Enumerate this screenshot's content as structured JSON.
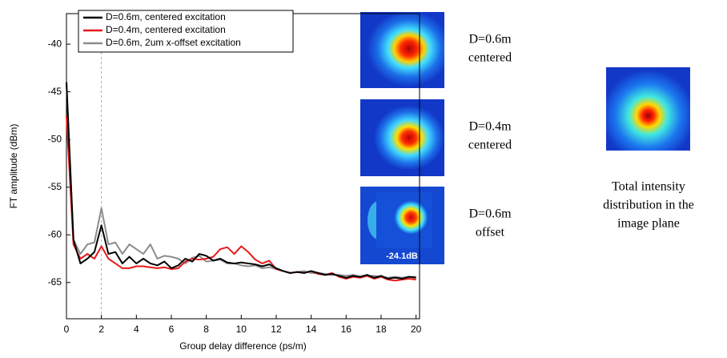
{
  "chart_data": {
    "type": "line",
    "x_label": "Group delay difference (ps/m)",
    "y_label": "FT amplitude (dBm)",
    "x": [
      0,
      0.4,
      0.8,
      1.2,
      1.6,
      2,
      2.4,
      2.8,
      3.2,
      3.6,
      4,
      4.4,
      4.8,
      5.2,
      5.6,
      6,
      6.4,
      6.8,
      7.2,
      7.6,
      8,
      8.4,
      8.8,
      9.2,
      9.6,
      10,
      10.4,
      10.8,
      11.2,
      11.6,
      12,
      12.4,
      12.8,
      13.2,
      13.6,
      14,
      14.4,
      14.8,
      15.2,
      15.6,
      16,
      16.4,
      16.8,
      17.2,
      17.6,
      18,
      18.4,
      18.8,
      19.2,
      19.6,
      20
    ],
    "series": [
      {
        "name": "D=0.6m, centered excitation",
        "color": "#000000",
        "values": [
          -44,
          -60.5,
          -63,
          -62.5,
          -61.8,
          -59,
          -62,
          -61.8,
          -63,
          -62.3,
          -63,
          -62.5,
          -63,
          -63.2,
          -62.8,
          -63.5,
          -63.2,
          -62.5,
          -62.8,
          -62,
          -62.2,
          -62.7,
          -62.5,
          -62.9,
          -63,
          -62.9,
          -63,
          -63.1,
          -63.3,
          -63.1,
          -63.5,
          -63.8,
          -64,
          -63.9,
          -64,
          -63.8,
          -64,
          -64.2,
          -64.1,
          -64.3,
          -64.5,
          -64.3,
          -64.4,
          -64.2,
          -64.5,
          -64.3,
          -64.6,
          -64.5,
          -64.6,
          -64.4,
          -64.5
        ]
      },
      {
        "name": "D=0.4m, centered excitation",
        "color": "#e8191a",
        "values": [
          -47.5,
          -61,
          -62.5,
          -62,
          -62.5,
          -61.2,
          -62.5,
          -63,
          -63.5,
          -63.5,
          -63.3,
          -63.3,
          -63.4,
          -63.5,
          -63.4,
          -63.6,
          -63.5,
          -62.8,
          -62.5,
          -62.6,
          -62.5,
          -62.3,
          -61.5,
          -61.3,
          -62,
          -61.2,
          -61.8,
          -62.6,
          -63,
          -62.7,
          -63.6,
          -63.8,
          -64,
          -63.9,
          -64,
          -63.8,
          -64.1,
          -64.2,
          -64,
          -64.4,
          -64.6,
          -64.4,
          -64.5,
          -64.3,
          -64.6,
          -64.4,
          -64.7,
          -64.8,
          -64.7,
          -64.6,
          -64.7
        ]
      },
      {
        "name": "D=0.6m, 2um x-offset excitation",
        "color": "#8c8c8c",
        "values": [
          -44,
          -60.5,
          -62,
          -61,
          -60.8,
          -57.2,
          -61,
          -60.8,
          -62,
          -61,
          -61.5,
          -62,
          -61,
          -62.5,
          -62.2,
          -62.3,
          -62.5,
          -63,
          -62.4,
          -62.2,
          -62.8,
          -62.7,
          -62.6,
          -63,
          -63,
          -63.2,
          -63.3,
          -63.2,
          -63.5,
          -63.4,
          -63.6,
          -63.8,
          -64,
          -63.9,
          -63.8,
          -64,
          -64,
          -64.1,
          -64.2,
          -64.2,
          -64.3,
          -64.2,
          -64.4,
          -64.3,
          -64.3,
          -64.4,
          -64.5,
          -64.4,
          -64.5,
          -64.4,
          -64.4
        ]
      }
    ],
    "xlim": [
      0,
      20.2
    ],
    "ylim": [
      -68.8,
      -36.8
    ],
    "xticks": [
      0,
      2,
      4,
      6,
      8,
      10,
      12,
      14,
      16,
      18,
      20
    ],
    "yticks": [
      -65,
      -60,
      -55,
      -50,
      -45,
      -40
    ],
    "reference_x": 2,
    "legend": "upper left"
  },
  "panels": {
    "images": [
      {
        "label": [
          "D=0.6m",
          "centered"
        ]
      },
      {
        "label": [
          "D=0.4m",
          "centered"
        ]
      },
      {
        "label": [
          "D=0.6m",
          "offset"
        ],
        "overlay": "-24.1dB"
      }
    ],
    "total": {
      "label": [
        "Total intensity",
        "distribution in the",
        "image plane"
      ]
    }
  }
}
